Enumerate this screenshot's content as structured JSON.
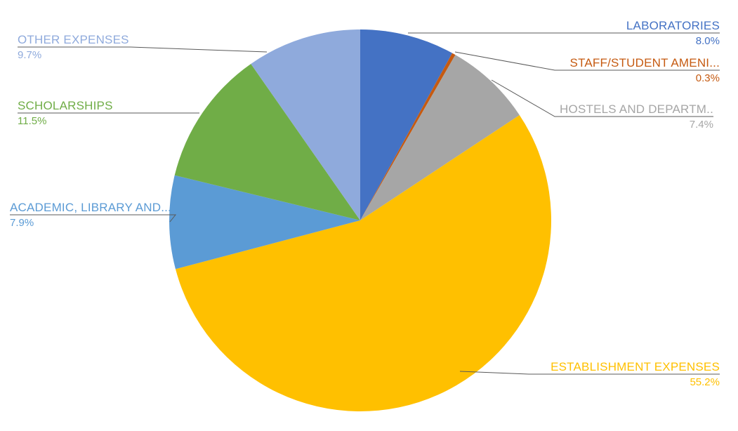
{
  "chart_data": {
    "type": "pie",
    "direction": "clockwise",
    "start_angle_deg": 0,
    "legend_position": "callout-labels",
    "background": "#FFFFFF",
    "leader_line_color": "#595959",
    "total": 100.0,
    "slices": [
      {
        "label": "LABORATORIES",
        "pct_label": "8.0%",
        "value": 8.0,
        "color": "#4472C4"
      },
      {
        "label": "STAFF/STUDENT AMENI...",
        "pct_label": "0.3%",
        "value": 0.3,
        "color": "#C55A11"
      },
      {
        "label": "HOSTELS AND DEPARTM..",
        "pct_label": "7.4%",
        "value": 7.4,
        "color": "#A6A6A6"
      },
      {
        "label": "ESTABLISHMENT EXPENSES",
        "pct_label": "55.2%",
        "value": 55.2,
        "color": "#FFC000"
      },
      {
        "label": "ACADEMIC, LIBRARY AND...",
        "pct_label": "7.9%",
        "value": 7.9,
        "color": "#5B9BD5"
      },
      {
        "label": "SCHOLARSHIPS",
        "pct_label": "11.5%",
        "value": 11.5,
        "color": "#70AD47"
      },
      {
        "label": "OTHER EXPENSES",
        "pct_label": "9.7%",
        "value": 9.7,
        "color": "#8FAADC"
      }
    ]
  }
}
